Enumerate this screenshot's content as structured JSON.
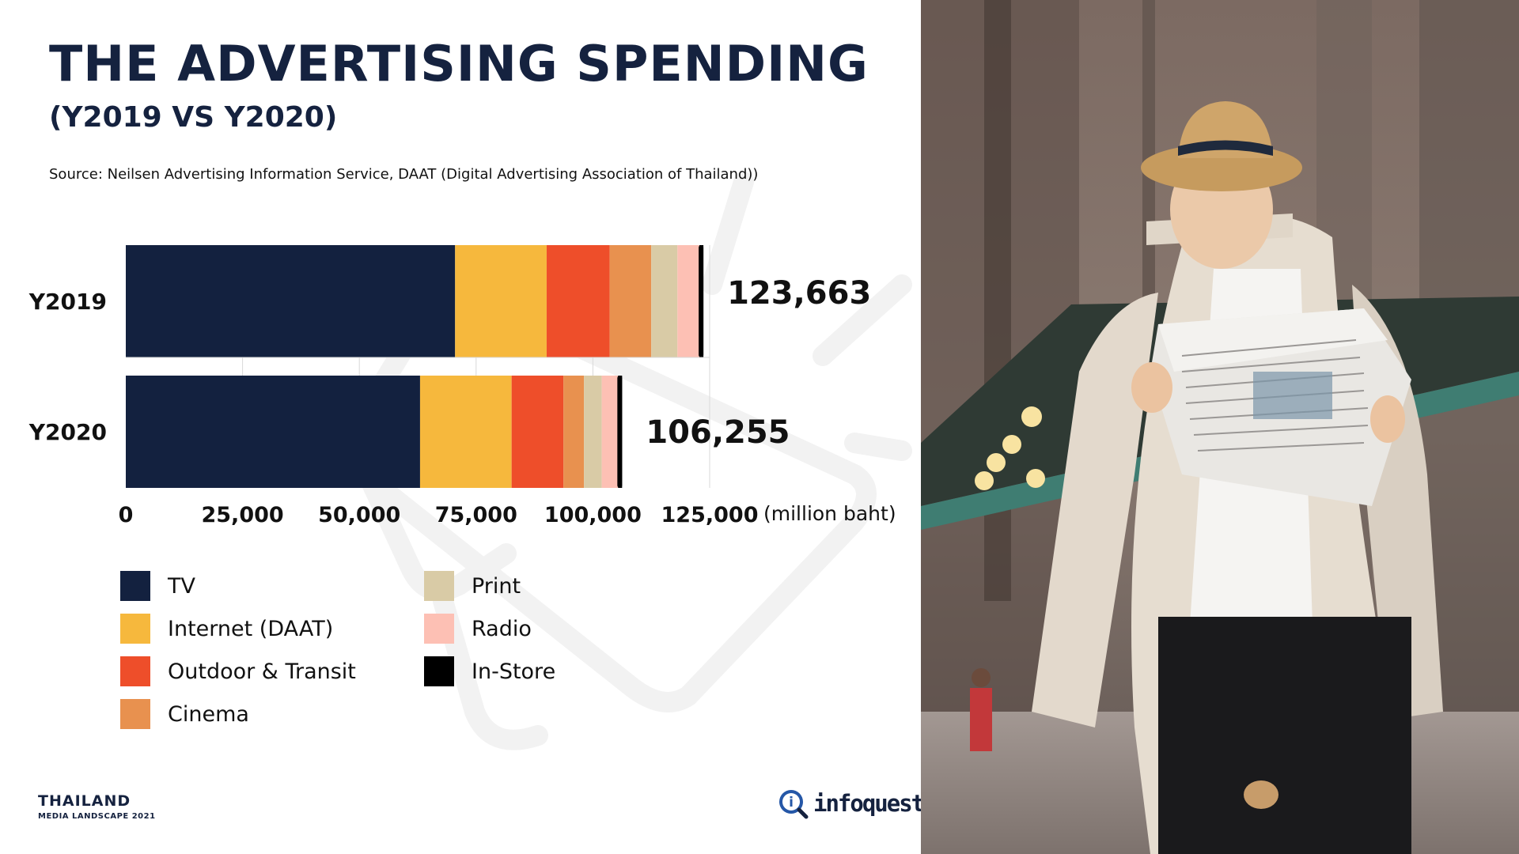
{
  "header": {
    "title": "THE ADVERTISING SPENDING",
    "subtitle": "(Y2019 VS Y2020)",
    "source": "Source: Neilsen Advertising Information Service, DAAT (Digital Advertising Association of Thailand))"
  },
  "footer": {
    "country": "THAILAND",
    "subtitle": "MEDIA LANDSCAPE 2021",
    "logo_text": "infoquest",
    "logo_icon": "i"
  },
  "photo": {
    "icon": "photo-man-reading-newspaper"
  },
  "colors": {
    "TV": "#13213f",
    "Internet (DAAT)": "#f6b83d",
    "Outdoor & Transit": "#ee4e2a",
    "Cinema": "#e8914f",
    "Print": "#d9cba6",
    "Radio": "#fdc0b4",
    "In-Store": "#000000"
  },
  "chart_data": {
    "type": "bar",
    "orientation": "horizontal",
    "stacked": true,
    "categories": [
      "Y2019",
      "Y2020"
    ],
    "series": [
      {
        "name": "TV",
        "values": [
          70500,
          63000
        ]
      },
      {
        "name": "Internet (DAAT)",
        "values": [
          19600,
          19600
        ]
      },
      {
        "name": "Outdoor & Transit",
        "values": [
          13500,
          11100
        ]
      },
      {
        "name": "Cinema",
        "values": [
          8900,
          4400
        ]
      },
      {
        "name": "Print",
        "values": [
          5600,
          3800
        ]
      },
      {
        "name": "Radio",
        "values": [
          4700,
          3500
        ]
      },
      {
        "name": "In-Store",
        "values": [
          863,
          855
        ]
      }
    ],
    "totals": [
      "123,663",
      "106,255"
    ],
    "xlim": [
      0,
      125000
    ],
    "xticks": [
      0,
      25000,
      50000,
      75000,
      100000,
      125000
    ],
    "xtick_labels": [
      "0",
      "25,000",
      "50,000",
      "75,000",
      "100,000",
      "125,000"
    ],
    "xunit": "(million baht)",
    "grid": "vertical",
    "legend": {
      "placement": "bottom",
      "columns": [
        [
          "TV",
          "Internet (DAAT)",
          "Outdoor & Transit",
          "Cinema"
        ],
        [
          "Print",
          "Radio",
          "In-Store"
        ]
      ]
    }
  }
}
